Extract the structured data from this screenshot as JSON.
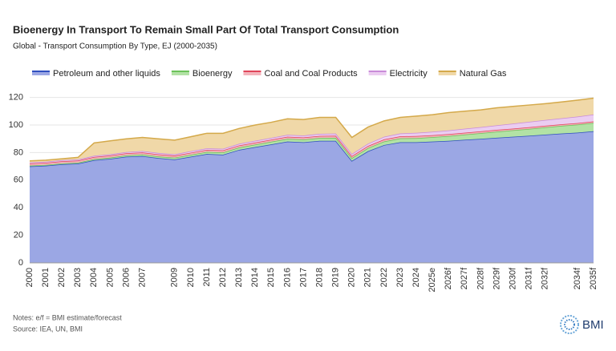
{
  "chart_data": {
    "type": "stacked_area",
    "title": "Bioenergy In Transport To Remain Small Part Of Total Transport Consumption",
    "subtitle": "Global - Transport Consumption By Type, EJ (2000-2035)",
    "categories": [
      "2000",
      "2001",
      "2002",
      "2003",
      "2004",
      "2005",
      "2006",
      "2007",
      null,
      "2009",
      "2010",
      "2011",
      "2012",
      "2013",
      "2014",
      "2015",
      "2016",
      "2017",
      "2018",
      "2019",
      "2020",
      "2021",
      "2022",
      "2023",
      "2024",
      "2025e",
      "2026f",
      "2027f",
      "2028f",
      "2029f",
      "2030f",
      "2031f",
      "2032f",
      null,
      "2034f",
      "2035f"
    ],
    "series": [
      {
        "name": "Petroleum and other liquids",
        "color": "#2f4fbf",
        "fill": "#9ba7e4",
        "values": [
          70,
          70.5,
          71.5,
          72,
          74.5,
          75.5,
          77,
          77.5,
          76,
          75,
          77,
          79,
          78.5,
          82,
          84,
          86,
          88,
          87.5,
          88.5,
          88.5,
          74,
          81,
          85.5,
          87.5,
          87.5,
          88,
          88.5,
          89.3,
          90,
          90.8,
          91.5,
          92.2,
          93,
          93.8,
          94.5,
          95.5
        ]
      },
      {
        "name": "Bioenergy",
        "color": "#6cc25a",
        "fill": "#b2e2a5",
        "values": [
          0.6,
          0.6,
          0.7,
          0.7,
          0.8,
          0.9,
          1.0,
          1.1,
          1.2,
          1.3,
          1.4,
          1.5,
          1.6,
          1.7,
          1.8,
          1.9,
          2.0,
          2.0,
          2.1,
          2.2,
          2.0,
          2.3,
          2.6,
          2.8,
          3.0,
          3.2,
          3.5,
          3.8,
          4.1,
          4.4,
          4.7,
          5.0,
          5.3,
          5.6,
          5.8,
          6.0
        ]
      },
      {
        "name": "Coal and Coal Products",
        "color": "#e0455a",
        "fill": "#f4b3bb",
        "values": [
          1.5,
          1.5,
          1.5,
          1.5,
          1.5,
          1.5,
          1.5,
          1.5,
          1.5,
          1.5,
          1.5,
          1.5,
          1.5,
          1.5,
          1.5,
          1.5,
          1.5,
          1.5,
          1.5,
          1.5,
          1.5,
          1.5,
          1.5,
          1.5,
          1.5,
          1.4,
          1.4,
          1.3,
          1.3,
          1.3,
          1.2,
          1.2,
          1.2,
          1.1,
          1.1,
          1.1
        ]
      },
      {
        "name": "Electricity",
        "color": "#c98bd9",
        "fill": "#ebcdf1",
        "values": [
          0.8,
          0.8,
          0.8,
          0.8,
          0.9,
          0.9,
          0.9,
          1.0,
          1.0,
          1.0,
          1.1,
          1.1,
          1.2,
          1.2,
          1.3,
          1.3,
          1.4,
          1.4,
          1.5,
          1.6,
          1.5,
          1.7,
          1.9,
          2.1,
          2.3,
          2.5,
          2.7,
          2.9,
          3.1,
          3.3,
          3.6,
          3.9,
          4.1,
          4.4,
          4.7,
          5.0
        ]
      },
      {
        "name": "Natural Gas",
        "color": "#d4a94a",
        "fill": "#f0d8a8",
        "values": [
          1.1,
          1.1,
          1.0,
          1.5,
          9.3,
          9.7,
          9.6,
          9.9,
          10.3,
          10.2,
          10.5,
          10.9,
          11.2,
          11.1,
          11.4,
          11.3,
          11.6,
          11.6,
          11.9,
          11.7,
          12,
          12,
          11.5,
          11.6,
          12.2,
          12.4,
          12.9,
          12.7,
          12.5,
          12.7,
          12.5,
          12.2,
          11.9,
          11.8,
          11.9,
          11.9
        ]
      }
    ],
    "ylim": [
      0,
      125
    ],
    "yticks": [
      0,
      20,
      40,
      60,
      80,
      100,
      120
    ],
    "grid": true,
    "notes": "Notes: e/f = BMI estimate/forecast",
    "source": "Source: IEA, UN, BMI",
    "logo_text": "BMI"
  }
}
